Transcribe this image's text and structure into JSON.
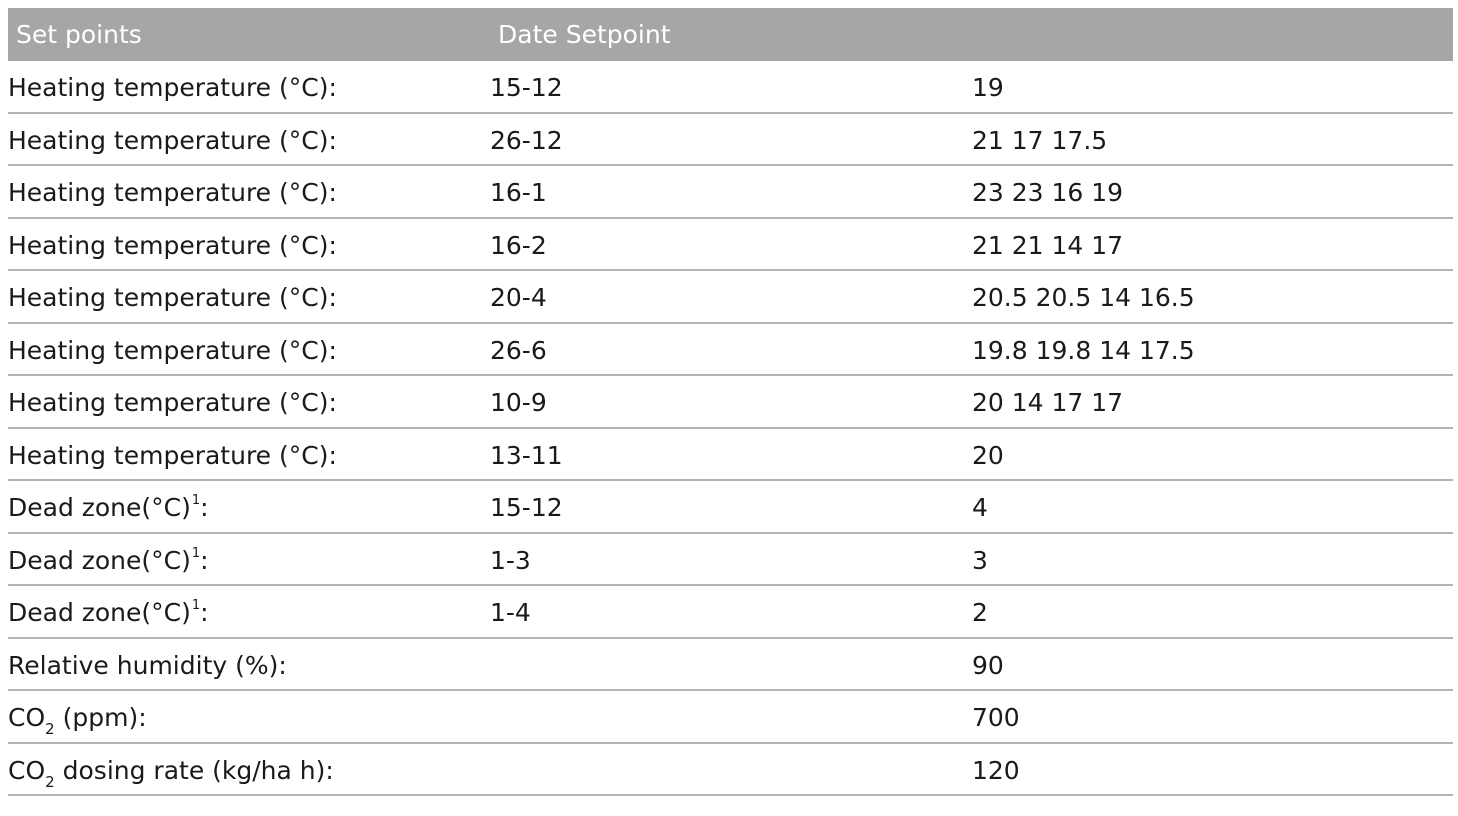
{
  "header": {
    "col1": "Set points",
    "col2": "Date Setpoint"
  },
  "rows": [
    {
      "label": "Heating temperature (°C):",
      "date": "15-12",
      "setpoint": "19"
    },
    {
      "label": "Heating temperature (°C):",
      "date": "26-12",
      "setpoint": "21 17 17.5"
    },
    {
      "label": "Heating temperature (°C):",
      "date": "16-1",
      "setpoint": "23 23 16 19"
    },
    {
      "label": "Heating temperature (°C):",
      "date": "16-2",
      "setpoint": "21 21 14 17"
    },
    {
      "label": "Heating temperature (°C):",
      "date": "20-4",
      "setpoint": "20.5 20.5 14 16.5"
    },
    {
      "label": "Heating temperature (°C):",
      "date": "26-6",
      "setpoint": "19.8 19.8 14 17.5"
    },
    {
      "label": "Heating temperature (°C):",
      "date": "10-9",
      "setpoint": "20 14 17 17"
    },
    {
      "label": "Heating temperature (°C):",
      "date": "13-11",
      "setpoint": "20"
    },
    {
      "label": "Dead zone(°C)",
      "footnote": "1",
      "suffix": ":",
      "date": "15-12",
      "setpoint": "4"
    },
    {
      "label": "Dead zone(°C)",
      "footnote": "1",
      "suffix": ":",
      "date": "1-3",
      "setpoint": "3"
    },
    {
      "label": "Dead zone(°C)",
      "footnote": "1",
      "suffix": ":",
      "date": "1-4",
      "setpoint": "2"
    },
    {
      "label": "Relative humidity (%):",
      "date": "",
      "setpoint": "90"
    },
    {
      "label_pre": "CO",
      "label_sub": "2",
      "label_post": " (ppm):",
      "date": "",
      "setpoint": "700"
    },
    {
      "label_pre": "CO",
      "label_sub": "2",
      "label_post": " dosing rate (kg/ha h):",
      "date": "",
      "setpoint": "120"
    }
  ]
}
